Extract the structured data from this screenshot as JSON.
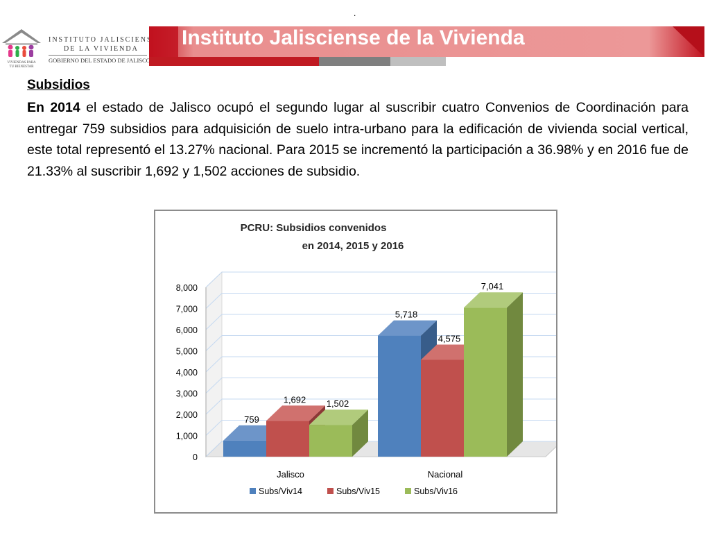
{
  "header": {
    "dot": ".",
    "banner_title": "Instituto Jalisciense de la Vivienda",
    "institute_line1": "INSTITUTO JALISCIENSE",
    "institute_line2": "DE LA VIVIENDA",
    "institute_line3": "GOBIERNO DEL ESTADO DE JALISCO",
    "logo_caption1": "VIVIENDAS PARA",
    "logo_caption2": "TU BIENESTAR"
  },
  "body": {
    "heading": "Subsidios",
    "para_year": "En 2014",
    "paragraph": " el estado de Jalisco ocupó el segundo lugar al suscribir cuatro Convenios de Coordinación para entregar 759 subsidios para adquisición de suelo intra-urbano para la edificación de vivienda social vertical, este total representó el 13.27% nacional. Para 2015 se incrementó la participación a 36.98% y en 2016 fue de 21.33% al suscribir 1,692 y 1,502 acciones de subsidio."
  },
  "colors": {
    "banner_dark": "#c1121f",
    "banner_light": "#e98e8e",
    "stripe_red": "#c01a22",
    "stripe_gray": "#7f7f7f",
    "stripe_light_gray": "#bfbfbf"
  },
  "chart_data": {
    "type": "bar",
    "style": "3d clustered column",
    "title_line1": "PCRU: Subsidios convenidos",
    "title_line2": "en 2014, 2015 y 2016",
    "categories": [
      "Jalisco",
      "Nacional"
    ],
    "series": [
      {
        "name": "Subs/Viv14",
        "values": [
          759,
          5718
        ],
        "labels": [
          "759",
          "5,718"
        ],
        "color": "#4f81bd",
        "side": "#385d8a",
        "top": "#6d95c9"
      },
      {
        "name": "Subs/Viv15",
        "values": [
          1692,
          4575
        ],
        "labels": [
          "1,692",
          "4,575"
        ],
        "color": "#c0504d",
        "side": "#8c3836",
        "top": "#d0716e"
      },
      {
        "name": "Subs/Viv16",
        "values": [
          1502,
          7041
        ],
        "labels": [
          "1,502",
          "7,041"
        ],
        "color": "#9bbb59",
        "side": "#71893f",
        "top": "#b1cb7c"
      }
    ],
    "yticks": [
      "0",
      "1,000",
      "2,000",
      "3,000",
      "4,000",
      "5,000",
      "6,000",
      "7,000",
      "8,000"
    ],
    "ylim": [
      0,
      8000
    ],
    "grid": true,
    "legend_position": "bottom"
  }
}
